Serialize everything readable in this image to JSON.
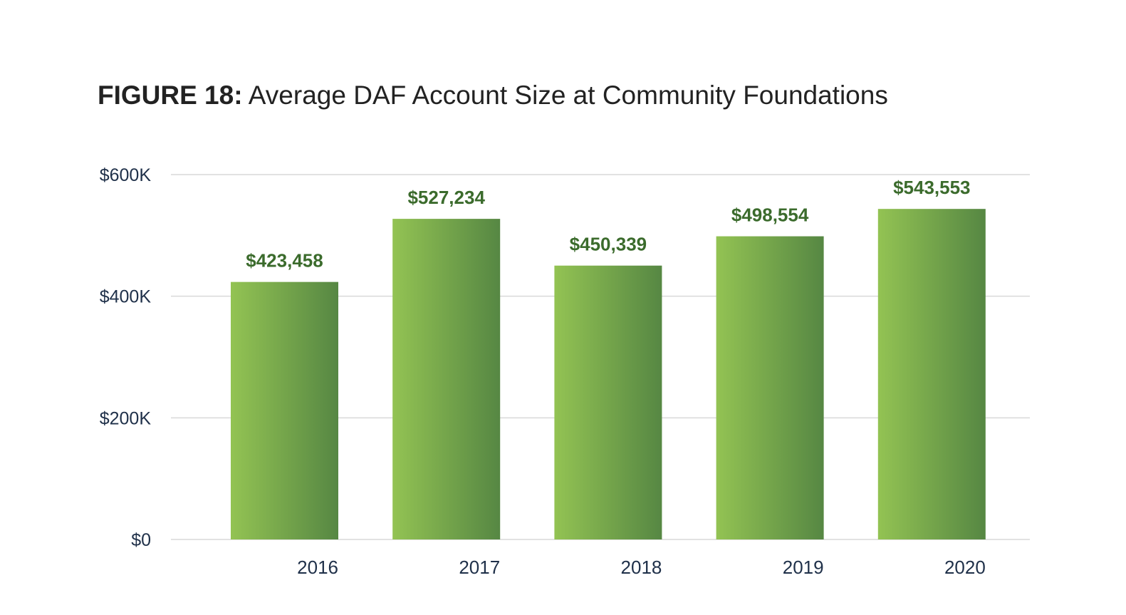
{
  "chart_data": {
    "type": "bar",
    "title_prefix": "FIGURE 18:",
    "title": "Average DAF Account Size at Community Foundations",
    "xlabel": "",
    "ylabel": "",
    "categories": [
      "2016",
      "2017",
      "2018",
      "2019",
      "2020"
    ],
    "values": [
      423458,
      527234,
      450339,
      498554,
      543553
    ],
    "data_labels": [
      "$423,458",
      "$527,234",
      "$450,339",
      "$498,554",
      "$543,553"
    ],
    "y_ticks": [
      0,
      200000,
      400000,
      600000
    ],
    "y_tick_labels": [
      "$0",
      "$200K",
      "$400K",
      "$600K"
    ],
    "ylim": [
      0,
      600000
    ],
    "grid": true,
    "legend": "none",
    "colors": {
      "bar_gradient_start": "#93c353",
      "bar_gradient_end": "#568743",
      "data_label": "#3b6b2c",
      "axis_text": "#1f3049",
      "gridline": "#d9d9d9",
      "title": "#222222"
    }
  }
}
